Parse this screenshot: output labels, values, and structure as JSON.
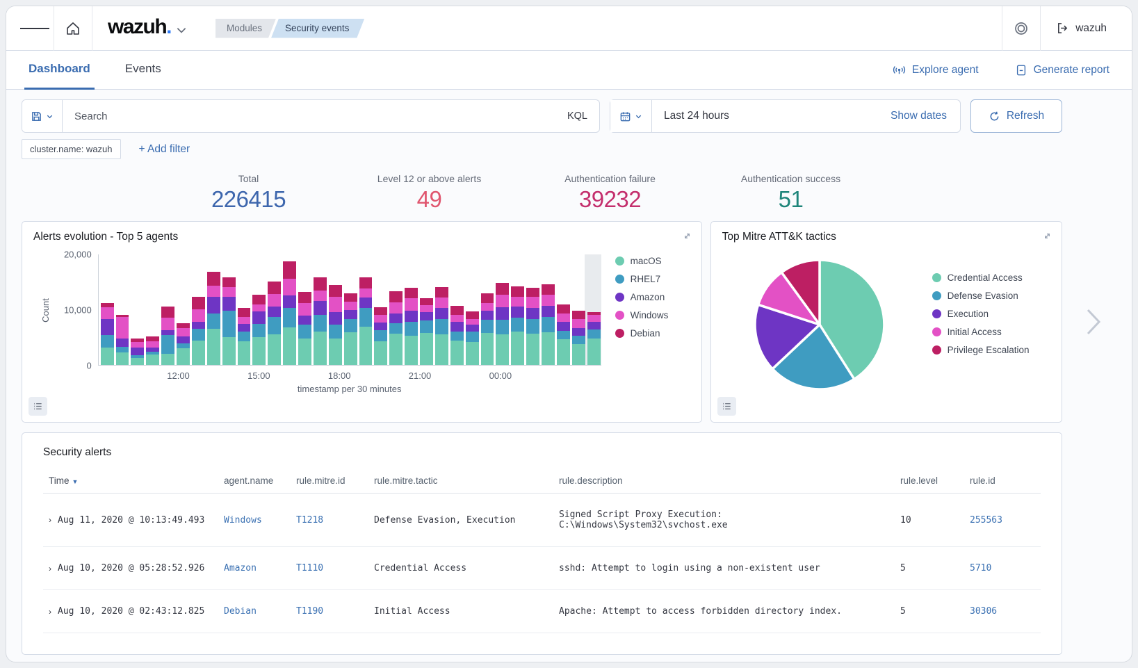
{
  "colors": {
    "accent_blue": "#3a6cb0",
    "link_blue": "#3a70b2"
  },
  "topbar": {
    "logo": "wazuh",
    "logo_dot": ".",
    "breadcrumb_modules": "Modules",
    "breadcrumb_current": "Security events",
    "user": "wazuh"
  },
  "tabs": {
    "dashboard": "Dashboard",
    "events": "Events",
    "explore_agent": "Explore agent",
    "generate_report": "Generate report"
  },
  "query": {
    "search_placeholder": "Search",
    "kql": "KQL",
    "time_range": "Last 24 hours",
    "show_dates": "Show dates",
    "refresh": "Refresh"
  },
  "filters": {
    "pill": "cluster.name: wazuh",
    "add": "+ Add filter"
  },
  "stats": [
    {
      "label": "Total",
      "value": "226415",
      "color": "#3d66ad"
    },
    {
      "label": "Level 12 or above alerts",
      "value": "49",
      "color": "#e0566f"
    },
    {
      "label": "Authentication failure",
      "value": "39232",
      "color": "#c42f6d"
    },
    {
      "label": "Authentication success",
      "value": "51",
      "color": "#1e857a"
    }
  ],
  "panels": {
    "alerts_evolution_title": "Alerts evolution - Top 5 agents",
    "mitre_title": "Top Mitre ATT&K tactics"
  },
  "chart_data": [
    {
      "type": "bar",
      "stacked": true,
      "title": "Alerts evolution - Top 5 agents",
      "xlabel": "timestamp per 30 minutes",
      "ylabel": "Count",
      "ylim": [
        0,
        20000
      ],
      "y_ticks": [
        {
          "label": "20,000",
          "value": 20000
        },
        {
          "label": "10,000",
          "value": 10000
        },
        {
          "label": "0",
          "value": 0
        }
      ],
      "x_ticks": [
        {
          "label": "12:00",
          "pos_pct": 16
        },
        {
          "label": "15:00",
          "pos_pct": 32
        },
        {
          "label": "18:00",
          "pos_pct": 48
        },
        {
          "label": "21:00",
          "pos_pct": 64
        },
        {
          "label": "00:00",
          "pos_pct": 80
        }
      ],
      "grid": false,
      "legend_position": "right",
      "highlight_last_bucket": true,
      "series": [
        {
          "name": "macOS",
          "color": "#6dccb1",
          "values": [
            3100,
            2300,
            1200,
            1900,
            2000,
            3000,
            4400,
            6500,
            5000,
            4300,
            5000,
            5500,
            6800,
            4800,
            6000,
            4700,
            5900,
            6900,
            4200,
            5600,
            5300,
            5800,
            5500,
            4400,
            4100,
            5800,
            5500,
            6000,
            5600,
            5900,
            4600,
            3700,
            4800
          ]
        },
        {
          "name": "RHEL7",
          "color": "#3f9cc1",
          "values": [
            2300,
            900,
            600,
            500,
            3400,
            900,
            2100,
            2800,
            4800,
            1700,
            2400,
            3100,
            3400,
            2500,
            3000,
            2600,
            2400,
            3300,
            2100,
            1900,
            2500,
            2200,
            2700,
            1600,
            1900,
            2300,
            2600,
            2500,
            2600,
            2700,
            1500,
            1500,
            1600
          ]
        },
        {
          "name": "Amazon",
          "color": "#6e35c4",
          "values": [
            2900,
            1500,
            1300,
            700,
            900,
            1200,
            1200,
            2900,
            2500,
            1400,
            2200,
            1900,
            2300,
            1600,
            2500,
            2200,
            1600,
            1900,
            1300,
            1800,
            2000,
            1500,
            2100,
            1700,
            1200,
            1600,
            2300,
            2000,
            2100,
            2000,
            1600,
            1400,
            1300
          ]
        },
        {
          "name": "Windows",
          "color": "#e351c5",
          "values": [
            2100,
            3900,
            1000,
            1200,
            2200,
            1500,
            2300,
            2100,
            1700,
            1200,
            1300,
            2200,
            3000,
            2200,
            1900,
            2700,
            1500,
            1600,
            1400,
            1900,
            2200,
            1300,
            1800,
            1300,
            1100,
            1400,
            2200,
            1800,
            1900,
            2000,
            1500,
            1600,
            1300
          ]
        },
        {
          "name": "Debian",
          "color": "#bd1f63",
          "values": [
            700,
            400,
            700,
            800,
            2000,
            900,
            2300,
            2500,
            1800,
            1600,
            1700,
            2300,
            3100,
            2000,
            2300,
            2200,
            1500,
            2100,
            1400,
            2100,
            1900,
            1200,
            1900,
            1600,
            1300,
            1800,
            2100,
            1800,
            1700,
            1900,
            1700,
            1500,
            500
          ]
        }
      ]
    },
    {
      "type": "pie",
      "title": "Top Mitre ATT&K tactics",
      "legend_position": "right",
      "slices": [
        {
          "label": "Credential Access",
          "pct": 41,
          "color": "#6dccb1"
        },
        {
          "label": "Defense Evasion",
          "pct": 22,
          "color": "#3f9cc1"
        },
        {
          "label": "Execution",
          "pct": 17,
          "color": "#6e35c4"
        },
        {
          "label": "Initial Access",
          "pct": 10,
          "color": "#e351c5"
        },
        {
          "label": "Privilege Escalation",
          "pct": 10,
          "color": "#bd1f63"
        }
      ]
    }
  ],
  "table": {
    "title": "Security alerts",
    "headers": [
      "Time",
      "agent.name",
      "rule.mitre.id",
      "rule.mitre.tactic",
      "rule.description",
      "rule.level",
      "rule.id"
    ],
    "rows": [
      {
        "time": "Aug 11, 2020 @ 10:13:49.493",
        "agent": "Windows",
        "mitre_id": "T1218",
        "tactic": "Defense Evasion, Execution",
        "description": "Signed Script Proxy Execution: C:\\Windows\\System32\\svchost.exe",
        "level": "10",
        "rule_id": "255563"
      },
      {
        "time": "Aug 10, 2020 @ 05:28:52.926",
        "agent": "Amazon",
        "mitre_id": "T1110",
        "tactic": "Credential Access",
        "description": "sshd: Attempt to login using a non-existent user",
        "level": "5",
        "rule_id": "5710"
      },
      {
        "time": "Aug 10, 2020 @ 02:43:12.825",
        "agent": "Debian",
        "mitre_id": "T1190",
        "tactic": "Initial Access",
        "description": "Apache: Attempt to access forbidden directory index.",
        "level": "5",
        "rule_id": "30306"
      }
    ]
  }
}
